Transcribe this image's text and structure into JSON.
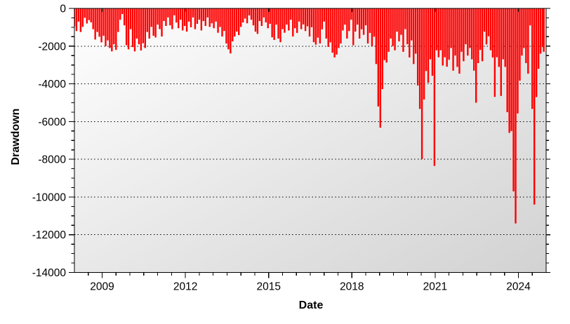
{
  "chart_data": {
    "type": "area",
    "title": "",
    "xlabel": "Date",
    "ylabel": "Drawdown",
    "series_name": "Drawdown",
    "series_color": "#ff0000",
    "xlim": [
      2008.0,
      2025.0
    ],
    "ylim": [
      -14000,
      0
    ],
    "x_ticks_major": [
      2009,
      2012,
      2015,
      2018,
      2021,
      2024
    ],
    "x_tick_labels": [
      "2009",
      "2012",
      "2015",
      "2018",
      "2021",
      "2024"
    ],
    "x_minor_step": 0.5,
    "y_ticks_major": [
      0,
      -2000,
      -4000,
      -6000,
      -8000,
      -10000,
      -12000,
      -14000
    ],
    "y_tick_labels": [
      "0",
      "-2000",
      "-4000",
      "-6000",
      "-8000",
      "-10000",
      "-12000",
      "-14000"
    ],
    "y_minor_step": 500,
    "grid": "horizontal-dotted",
    "legend": "none",
    "plot_bg_gradient": [
      "#ffffff",
      "#d2d2d2"
    ],
    "frame_color": "#000000",
    "points": [
      [
        2008.0,
        -950
      ],
      [
        2008.075,
        -1200
      ],
      [
        2008.15,
        -700
      ],
      [
        2008.225,
        -1250
      ],
      [
        2008.3,
        -980
      ],
      [
        2008.375,
        -500
      ],
      [
        2008.45,
        -800
      ],
      [
        2008.525,
        -620
      ],
      [
        2008.6,
        -740
      ],
      [
        2008.675,
        -1100
      ],
      [
        2008.75,
        -1650
      ],
      [
        2008.825,
        -1250
      ],
      [
        2008.9,
        -1500
      ],
      [
        2008.975,
        -1800
      ],
      [
        2009.05,
        -1450
      ],
      [
        2009.125,
        -2000
      ],
      [
        2009.2,
        -1700
      ],
      [
        2009.275,
        -2100
      ],
      [
        2009.35,
        -2280
      ],
      [
        2009.425,
        -1900
      ],
      [
        2009.5,
        -2200
      ],
      [
        2009.575,
        -1250
      ],
      [
        2009.65,
        -600
      ],
      [
        2009.725,
        -300
      ],
      [
        2009.8,
        -900
      ],
      [
        2009.875,
        -1950
      ],
      [
        2009.95,
        -2170
      ],
      [
        2010.025,
        -1100
      ],
      [
        2010.1,
        -2050
      ],
      [
        2010.175,
        -2280
      ],
      [
        2010.25,
        -1600
      ],
      [
        2010.325,
        -1900
      ],
      [
        2010.4,
        -2230
      ],
      [
        2010.475,
        -1850
      ],
      [
        2010.55,
        -2100
      ],
      [
        2010.625,
        -1250
      ],
      [
        2010.7,
        -1600
      ],
      [
        2010.775,
        -980
      ],
      [
        2010.85,
        -1450
      ],
      [
        2010.925,
        -1540
      ],
      [
        2011.0,
        -860
      ],
      [
        2011.075,
        -1100
      ],
      [
        2011.15,
        -1490
      ],
      [
        2011.225,
        -670
      ],
      [
        2011.3,
        -930
      ],
      [
        2011.375,
        -480
      ],
      [
        2011.45,
        -900
      ],
      [
        2011.525,
        -1100
      ],
      [
        2011.6,
        -370
      ],
      [
        2011.675,
        -750
      ],
      [
        2011.75,
        -1050
      ],
      [
        2011.825,
        -600
      ],
      [
        2011.9,
        -1170
      ],
      [
        2011.975,
        -930
      ],
      [
        2012.05,
        -1230
      ],
      [
        2012.125,
        -700
      ],
      [
        2012.2,
        -1000
      ],
      [
        2012.275,
        -480
      ],
      [
        2012.35,
        -1100
      ],
      [
        2012.425,
        -820
      ],
      [
        2012.5,
        -600
      ],
      [
        2012.575,
        -1170
      ],
      [
        2012.65,
        -670
      ],
      [
        2012.725,
        -930
      ],
      [
        2012.8,
        -480
      ],
      [
        2012.875,
        -980
      ],
      [
        2012.95,
        -790
      ],
      [
        2013.025,
        -1050
      ],
      [
        2013.1,
        -700
      ],
      [
        2013.175,
        -1290
      ],
      [
        2013.25,
        -980
      ],
      [
        2013.325,
        -1490
      ],
      [
        2013.4,
        -1200
      ],
      [
        2013.475,
        -1860
      ],
      [
        2013.55,
        -2170
      ],
      [
        2013.625,
        -2390
      ],
      [
        2013.7,
        -1750
      ],
      [
        2013.775,
        -1490
      ],
      [
        2013.85,
        -1230
      ],
      [
        2013.925,
        -1415
      ],
      [
        2014.0,
        -980
      ],
      [
        2014.075,
        -745
      ],
      [
        2014.15,
        -540
      ],
      [
        2014.225,
        -790
      ],
      [
        2014.3,
        -370
      ],
      [
        2014.375,
        -600
      ],
      [
        2014.45,
        -900
      ],
      [
        2014.525,
        -1230
      ],
      [
        2014.6,
        -1350
      ],
      [
        2014.675,
        -670
      ],
      [
        2014.75,
        -930
      ],
      [
        2014.825,
        -480
      ],
      [
        2014.9,
        -740
      ],
      [
        2014.975,
        -1050
      ],
      [
        2015.05,
        -820
      ],
      [
        2015.125,
        -1530
      ],
      [
        2015.2,
        -1670
      ],
      [
        2015.275,
        -860
      ],
      [
        2015.35,
        -1600
      ],
      [
        2015.425,
        -1790
      ],
      [
        2015.5,
        -1100
      ],
      [
        2015.575,
        -1290
      ],
      [
        2015.65,
        -860
      ],
      [
        2015.725,
        -1170
      ],
      [
        2015.8,
        -600
      ],
      [
        2015.875,
        -1490
      ],
      [
        2015.95,
        -1050
      ],
      [
        2016.025,
        -1300
      ],
      [
        2016.1,
        -700
      ],
      [
        2016.175,
        -1100
      ],
      [
        2016.25,
        -850
      ],
      [
        2016.325,
        -1200
      ],
      [
        2016.4,
        -950
      ],
      [
        2016.475,
        -1490
      ],
      [
        2016.55,
        -1000
      ],
      [
        2016.625,
        -1790
      ],
      [
        2016.7,
        -1920
      ],
      [
        2016.775,
        -1550
      ],
      [
        2016.85,
        -1860
      ],
      [
        2016.925,
        -1110
      ],
      [
        2017.0,
        -700
      ],
      [
        2017.075,
        -1600
      ],
      [
        2017.15,
        -2040
      ],
      [
        2017.225,
        -1800
      ],
      [
        2017.3,
        -2350
      ],
      [
        2017.375,
        -2600
      ],
      [
        2017.45,
        -2450
      ],
      [
        2017.525,
        -2100
      ],
      [
        2017.6,
        -1860
      ],
      [
        2017.675,
        -1170
      ],
      [
        2017.75,
        -860
      ],
      [
        2017.825,
        -1600
      ],
      [
        2017.9,
        -1200
      ],
      [
        2017.975,
        -600
      ],
      [
        2018.05,
        -1950
      ],
      [
        2018.125,
        -1230
      ],
      [
        2018.2,
        -860
      ],
      [
        2018.275,
        -1600
      ],
      [
        2018.35,
        -1110
      ],
      [
        2018.425,
        -1400
      ],
      [
        2018.5,
        -900
      ],
      [
        2018.575,
        -1860
      ],
      [
        2018.65,
        -1300
      ],
      [
        2018.725,
        -2000
      ],
      [
        2018.8,
        -1500
      ],
      [
        2018.875,
        -2950
      ],
      [
        2018.95,
        -5200
      ],
      [
        2019.025,
        -6320
      ],
      [
        2019.1,
        -4280
      ],
      [
        2019.175,
        -2740
      ],
      [
        2019.25,
        -2870
      ],
      [
        2019.325,
        -2300
      ],
      [
        2019.4,
        -1600
      ],
      [
        2019.475,
        -2000
      ],
      [
        2019.55,
        -2220
      ],
      [
        2019.625,
        -1230
      ],
      [
        2019.7,
        -1750
      ],
      [
        2019.775,
        -1400
      ],
      [
        2019.85,
        -2300
      ],
      [
        2019.925,
        -1100
      ],
      [
        2020.0,
        -1900
      ],
      [
        2020.075,
        -2600
      ],
      [
        2020.15,
        -1700
      ],
      [
        2020.225,
        -2950
      ],
      [
        2020.3,
        -2400
      ],
      [
        2020.375,
        -4085
      ],
      [
        2020.45,
        -5330
      ],
      [
        2020.525,
        -7990
      ],
      [
        2020.6,
        -4830
      ],
      [
        2020.675,
        -3320
      ],
      [
        2020.75,
        -3940
      ],
      [
        2020.825,
        -2700
      ],
      [
        2020.9,
        -3570
      ],
      [
        2020.975,
        -8350
      ],
      [
        2021.05,
        -2220
      ],
      [
        2021.125,
        -2590
      ],
      [
        2021.2,
        -2220
      ],
      [
        2021.275,
        -3030
      ],
      [
        2021.35,
        -2590
      ],
      [
        2021.425,
        -3090
      ],
      [
        2021.5,
        -2720
      ],
      [
        2021.575,
        -2100
      ],
      [
        2021.65,
        -3300
      ],
      [
        2021.725,
        -2500
      ],
      [
        2021.8,
        -3100
      ],
      [
        2021.875,
        -3460
      ],
      [
        2021.95,
        -2300
      ],
      [
        2022.025,
        -2800
      ],
      [
        2022.1,
        -1900
      ],
      [
        2022.175,
        -2500
      ],
      [
        2022.25,
        -2100
      ],
      [
        2022.325,
        -2700
      ],
      [
        2022.4,
        -3300
      ],
      [
        2022.475,
        -5000
      ],
      [
        2022.55,
        -2900
      ],
      [
        2022.625,
        -2200
      ],
      [
        2022.7,
        -2800
      ],
      [
        2022.775,
        -1230
      ],
      [
        2022.85,
        -1910
      ],
      [
        2022.925,
        -1480
      ],
      [
        2023.0,
        -2220
      ],
      [
        2023.075,
        -2600
      ],
      [
        2023.15,
        -4690
      ],
      [
        2023.225,
        -2590
      ],
      [
        2023.3,
        -3100
      ],
      [
        2023.375,
        -4640
      ],
      [
        2023.45,
        -2700
      ],
      [
        2023.525,
        -3100
      ],
      [
        2023.6,
        -5500
      ],
      [
        2023.675,
        -6600
      ],
      [
        2023.75,
        -6500
      ],
      [
        2023.825,
        -9700
      ],
      [
        2023.9,
        -11400
      ],
      [
        2023.975,
        -5570
      ],
      [
        2024.05,
        -3830
      ],
      [
        2024.125,
        -2500
      ],
      [
        2024.2,
        -2100
      ],
      [
        2024.275,
        -2900
      ],
      [
        2024.35,
        -3460
      ],
      [
        2024.425,
        -900
      ],
      [
        2024.5,
        -5330
      ],
      [
        2024.575,
        -10400
      ],
      [
        2024.65,
        -4700
      ],
      [
        2024.725,
        -3200
      ],
      [
        2024.8,
        -2400
      ],
      [
        2024.875,
        -2050
      ],
      [
        2024.915,
        -2300
      ]
    ]
  }
}
